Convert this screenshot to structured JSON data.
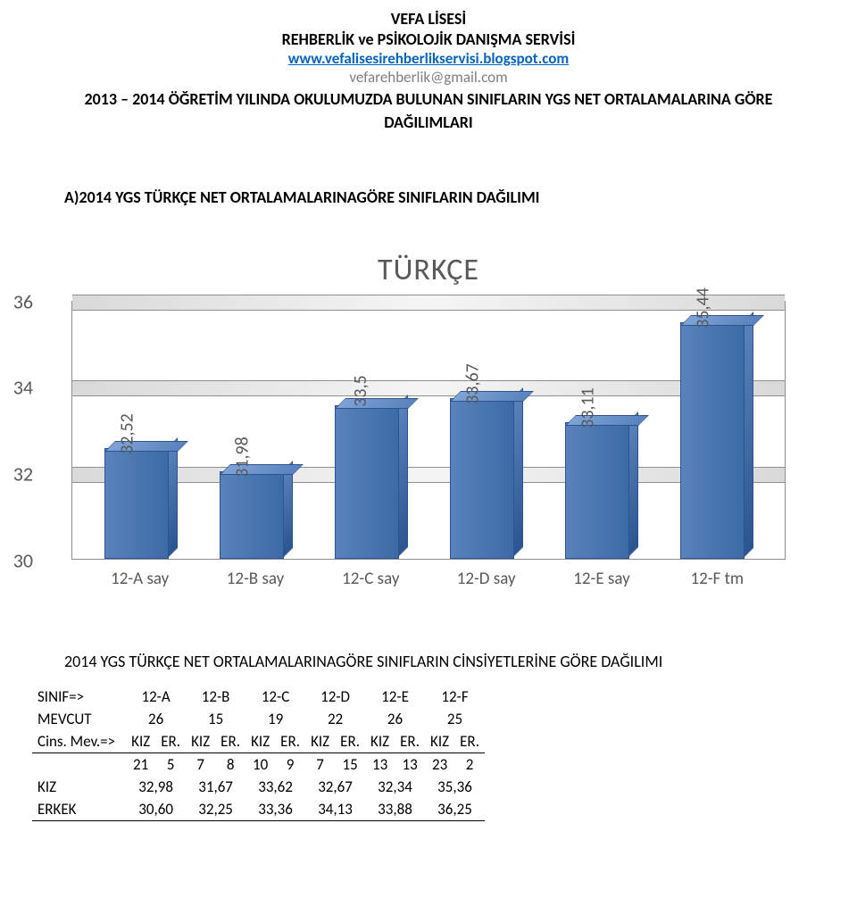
{
  "header": {
    "line1": "VEFA LİSESİ",
    "line2": "REHBERLİK ve PSİKOLOJİK DANIŞMA SERVİSİ",
    "link": "www.vefalisesirehberlikservisi.blogspot.com",
    "email": "vefarehberlik@gmail.com",
    "subhead1": "2013 – 2014 ÖĞRETİM YILINDA OKULUMUZDA BULUNAN SINIFLARIN YGS NET ORTALAMALARINA GÖRE",
    "subhead2": "DAĞILIMLARI"
  },
  "section_a": "A)2014 YGS TÜRKÇE NET ORTALAMALARINAGÖRE SINIFLARIN DAĞILIMI",
  "chart": {
    "title": "TÜRKÇE",
    "type": "bar",
    "categories": [
      "12-A say",
      "12-B say",
      "12-C say",
      "12-D say",
      "12-E say",
      "12-F tm"
    ],
    "values": [
      32.52,
      31.98,
      33.5,
      33.67,
      33.11,
      35.44
    ],
    "value_labels": [
      "32,52",
      "31,98",
      "33,5",
      "33,67",
      "33,11",
      "35,44"
    ],
    "y_ticks": [
      30,
      32,
      34,
      36
    ],
    "ylim": [
      30,
      36
    ],
    "bar_color": "#4472c4",
    "bar_border": "#2c5490",
    "grid_color": "#bfbfbf",
    "background_color": "#ffffff",
    "label_color": "#595959",
    "title_fontsize": 34,
    "axis_fontsize": 22,
    "xlabel_fontsize": 19
  },
  "table": {
    "title": "2014 YGS TÜRKÇE NET ORTALAMALARINAGÖRE SINIFLARIN CİNSİYETLERİNE GÖRE DAĞILIMI",
    "cols_label": "SINIF=>",
    "cols": [
      "12-A",
      "12-B",
      "12-C",
      "12-D",
      "12-E",
      "12-F"
    ],
    "mevcut_label": "MEVCUT",
    "mevcut": [
      "26",
      "15",
      "19",
      "22",
      "26",
      "25"
    ],
    "cins_label": "Cins. Mev.=>",
    "cins_headers": [
      "KIZ",
      "ER.",
      "KIZ",
      "ER.",
      "KIZ",
      "ER.",
      "KIZ",
      "ER.",
      "KIZ",
      "ER.",
      "KIZ",
      "ER."
    ],
    "cins_vals": [
      "21",
      "5",
      "7",
      "8",
      "10",
      "9",
      "7",
      "15",
      "13",
      "13",
      "23",
      "2"
    ],
    "kiz_label": "KIZ",
    "kiz_vals": [
      "32,98",
      "31,67",
      "33,62",
      "32,67",
      "32,34",
      "35,36"
    ],
    "erkek_label": "ERKEK",
    "erkek_vals": [
      "30,60",
      "32,25",
      "33,36",
      "34,13",
      "33,88",
      "36,25"
    ]
  }
}
